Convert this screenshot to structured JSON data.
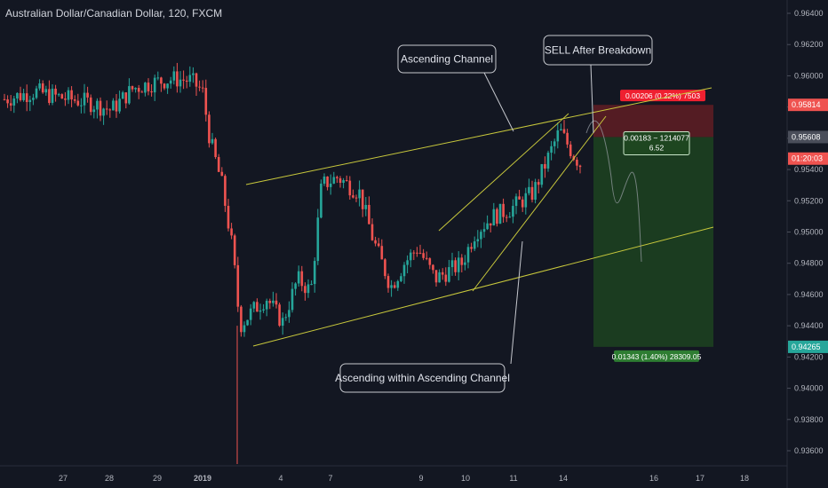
{
  "header": {
    "title": "Australian Dollar/Canadian Dollar, 120, FXCM"
  },
  "colors": {
    "background": "#131722",
    "up": "#26a69a",
    "down": "#ef5350",
    "trendline": "#c8c83c",
    "axis_text": "#b2b5be",
    "stop_zone": "#6b1f24",
    "target_zone": "#1e4620"
  },
  "chart_data": {
    "type": "candlestick",
    "title": "Australian Dollar/Canadian Dollar, 120, FXCM",
    "xlabel": "",
    "ylabel": "",
    "y_range": [
      0.9348,
      0.965
    ],
    "y_ticks": [
      "0.96400",
      "0.96200",
      "0.96000",
      "0.95800",
      "0.95600",
      "0.95400",
      "0.95200",
      "0.95000",
      "0.94800",
      "0.94600",
      "0.94400",
      "0.94200",
      "0.94000",
      "0.93800",
      "0.93600"
    ],
    "x_ticks": [
      "27",
      "28",
      "29",
      "2019",
      "4",
      "7",
      "9",
      "10",
      "11",
      "14",
      "16",
      "17",
      "18"
    ],
    "price_labels": [
      {
        "label": "0.95814",
        "color": "#ef5350"
      },
      {
        "label": "0.95608",
        "color": "#4a4e5a"
      },
      {
        "label": "01:20:03",
        "color": "#ef5350"
      },
      {
        "label": "0.94265",
        "color": "#26a69a"
      }
    ],
    "position": {
      "entry": 0.95608,
      "stop": 0.95814,
      "target": 0.94265,
      "stop_label": "0.00206 (0.22%) 7503",
      "entry_label_line1": "0.00183 ~ 1214077",
      "entry_label_line2": "6.52",
      "target_label": "0.01343 (1.40%) 28309.05"
    },
    "annotations": [
      {
        "text": "Ascending Channel"
      },
      {
        "text": "SELL After Breakdown"
      },
      {
        "text": "Ascending within Ascending Channel"
      }
    ],
    "grid": false
  }
}
